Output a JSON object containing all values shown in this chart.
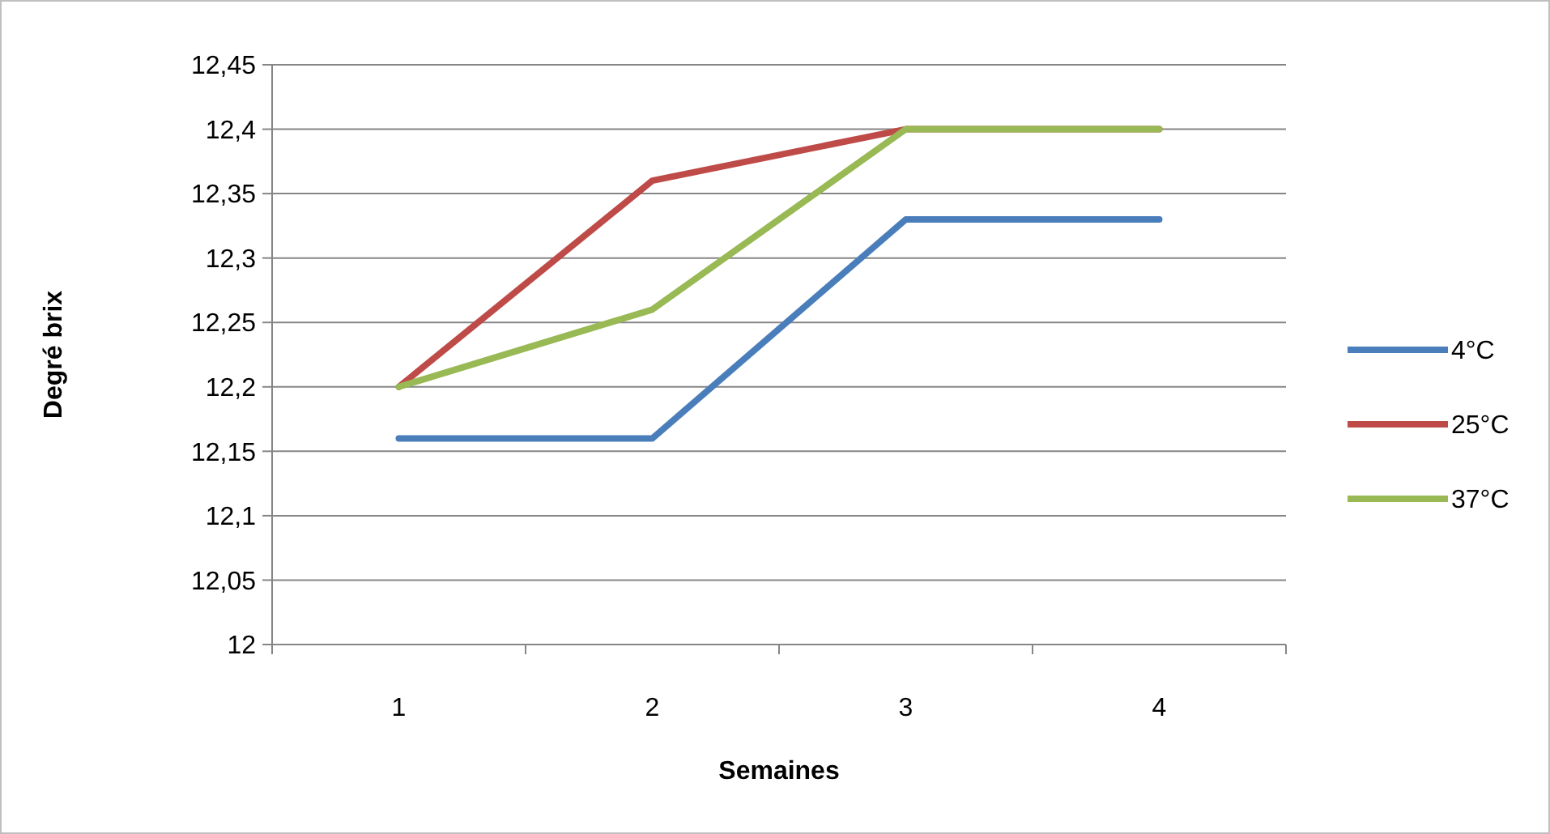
{
  "chart_data": {
    "type": "line",
    "xlabel": "Semaines",
    "ylabel": "Degré brix",
    "categories": [
      "1",
      "2",
      "3",
      "4"
    ],
    "series": [
      {
        "name": "4°C",
        "color": "#4a7ebb",
        "values": [
          12.16,
          12.16,
          12.33,
          12.33
        ]
      },
      {
        "name": "25°C",
        "color": "#be4b48",
        "values": [
          12.2,
          12.36,
          12.4,
          12.4
        ]
      },
      {
        "name": "37°C",
        "color": "#98b954",
        "values": [
          12.2,
          12.26,
          12.4,
          12.4
        ]
      }
    ],
    "ylim": [
      12,
      12.45
    ],
    "yticks": [
      12,
      {
        "value": 12.05,
        "label": "12,05"
      },
      {
        "value": 12.1,
        "label": "12,1"
      },
      {
        "value": 12.15,
        "label": "12,15"
      },
      {
        "value": 12.2,
        "label": "12,2"
      },
      {
        "value": 12.25,
        "label": "12,25"
      },
      {
        "value": 12.3,
        "label": "12,3"
      },
      {
        "value": 12.35,
        "label": "12,35"
      },
      {
        "value": 12.4,
        "label": "12,4"
      },
      {
        "value": 12.45,
        "label": "12,45"
      }
    ],
    "grid": "y",
    "legend": "right"
  }
}
